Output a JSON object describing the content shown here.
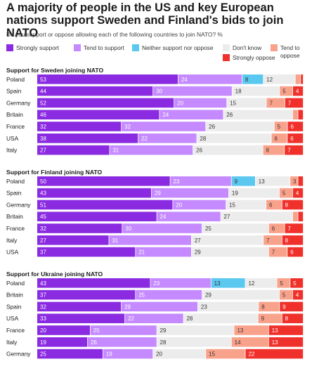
{
  "title": "A majority of people in the US and key European nations support Sweden and Finland's bids to join NATO",
  "subtitle": "Do you support or oppose allowing each of the following countries to join NATO? %",
  "legend": {
    "items": [
      "Strongly support",
      "Tend to support",
      "Neither support nor oppose",
      "Don't know",
      "Tend to oppose",
      "Strongly oppose"
    ],
    "colors": [
      "#8a2be2",
      "#c58aff",
      "#5bc8f0",
      "#ececec",
      "#f9a28b",
      "#f0302a"
    ]
  },
  "chart_data": [
    {
      "type": "bar",
      "title": "Support for Sweden joining NATO",
      "stacked": true,
      "orientation": "horizontal",
      "categories": [
        "Poland",
        "Spain",
        "Germany",
        "Britain",
        "France",
        "USA",
        "Italy"
      ],
      "series": [
        {
          "name": "Strongly support",
          "values": [
            53,
            44,
            52,
            46,
            32,
            38,
            27
          ]
        },
        {
          "name": "Tend to support",
          "values": [
            24,
            30,
            20,
            24,
            32,
            22,
            31
          ]
        },
        {
          "name": "Neither support nor oppose",
          "values": [
            8,
            0,
            0,
            0,
            0,
            0,
            0
          ]
        },
        {
          "name": "Don't know",
          "values": [
            12,
            18,
            15,
            26,
            26,
            28,
            26
          ]
        },
        {
          "name": "Tend to oppose",
          "values": [
            2,
            5,
            7,
            2,
            5,
            6,
            8
          ]
        },
        {
          "name": "Strongly oppose",
          "values": [
            1,
            4,
            7,
            2,
            6,
            6,
            7
          ]
        }
      ]
    },
    {
      "type": "bar",
      "title": "Support for Finland joining NATO",
      "stacked": true,
      "orientation": "horizontal",
      "categories": [
        "Poland",
        "Spain",
        "Germany",
        "Britain",
        "France",
        "Italy",
        "USA"
      ],
      "series": [
        {
          "name": "Strongly support",
          "values": [
            50,
            43,
            51,
            45,
            32,
            27,
            37
          ]
        },
        {
          "name": "Tend to support",
          "values": [
            23,
            29,
            20,
            24,
            30,
            31,
            21
          ]
        },
        {
          "name": "Neither support nor oppose",
          "values": [
            9,
            0,
            0,
            0,
            0,
            0,
            0
          ]
        },
        {
          "name": "Don't know",
          "values": [
            13,
            19,
            15,
            27,
            25,
            27,
            29
          ]
        },
        {
          "name": "Tend to oppose",
          "values": [
            3,
            5,
            6,
            2,
            6,
            7,
            7
          ]
        },
        {
          "name": "Strongly oppose",
          "values": [
            2,
            4,
            8,
            2,
            7,
            8,
            6
          ]
        }
      ]
    },
    {
      "type": "bar",
      "title": "Support for Ukraine joining NATO",
      "stacked": true,
      "orientation": "horizontal",
      "categories": [
        "Poland",
        "Britain",
        "Spain",
        "USA",
        "France",
        "Italy",
        "Germany"
      ],
      "series": [
        {
          "name": "Strongly support",
          "values": [
            43,
            37,
            32,
            33,
            20,
            19,
            25
          ]
        },
        {
          "name": "Tend to support",
          "values": [
            23,
            25,
            29,
            22,
            25,
            26,
            19
          ]
        },
        {
          "name": "Neither support nor oppose",
          "values": [
            13,
            0,
            0,
            0,
            0,
            0,
            0
          ]
        },
        {
          "name": "Don't know",
          "values": [
            12,
            29,
            23,
            28,
            29,
            28,
            20
          ]
        },
        {
          "name": "Tend to oppose",
          "values": [
            5,
            5,
            8,
            9,
            13,
            14,
            15
          ]
        },
        {
          "name": "Strongly oppose",
          "values": [
            5,
            4,
            9,
            8,
            13,
            13,
            22
          ]
        }
      ]
    }
  ]
}
